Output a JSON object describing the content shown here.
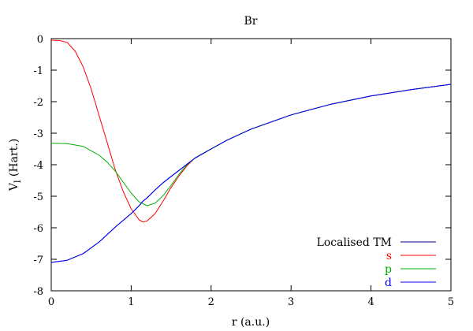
{
  "chart_data": {
    "type": "line",
    "title": "Br",
    "xlabel": "r (a.u.)",
    "ylabel_main": "V",
    "ylabel_sub": "l",
    "ylabel_unit": " (Hart.)",
    "xlim": [
      0,
      5
    ],
    "ylim": [
      -8,
      0
    ],
    "xticks": [
      0,
      1,
      2,
      3,
      4,
      5
    ],
    "yticks": [
      0,
      -1,
      -2,
      -3,
      -4,
      -5,
      -6,
      -7,
      -8
    ],
    "grid": false,
    "legend_position": "bottom-right",
    "series": [
      {
        "name": "Localised TM",
        "color": "#000080",
        "x": [
          0,
          0.2,
          0.4,
          0.6,
          0.8,
          1.0,
          1.1,
          1.15,
          1.2,
          1.3,
          1.4,
          1.5,
          1.6,
          1.7,
          1.8,
          2.0,
          2.2,
          2.5,
          3.0,
          3.5,
          4.0,
          4.5,
          5.0
        ],
        "y": [
          -7.1,
          -7.03,
          -6.82,
          -6.45,
          -5.98,
          -5.55,
          -5.3,
          -5.15,
          -5.05,
          -4.8,
          -4.57,
          -4.37,
          -4.18,
          -3.98,
          -3.79,
          -3.5,
          -3.22,
          -2.87,
          -2.42,
          -2.08,
          -1.82,
          -1.62,
          -1.45
        ]
      },
      {
        "name": "s",
        "color": "#ff0000",
        "x": [
          0,
          0.1,
          0.2,
          0.3,
          0.4,
          0.5,
          0.6,
          0.7,
          0.8,
          0.9,
          1.0,
          1.1,
          1.15,
          1.2,
          1.3,
          1.4,
          1.5,
          1.6,
          1.7,
          1.8,
          2.0,
          2.2,
          2.5,
          3.0,
          3.5,
          4.0,
          4.5,
          5.0
        ],
        "y": [
          -0.05,
          -0.06,
          -0.12,
          -0.4,
          -0.9,
          -1.6,
          -2.45,
          -3.3,
          -4.15,
          -4.85,
          -5.4,
          -5.75,
          -5.82,
          -5.78,
          -5.55,
          -5.15,
          -4.72,
          -4.35,
          -4.03,
          -3.78,
          -3.5,
          -3.22,
          -2.87,
          -2.42,
          -2.08,
          -1.82,
          -1.62,
          -1.45
        ]
      },
      {
        "name": "p",
        "color": "#00b000",
        "x": [
          0,
          0.2,
          0.4,
          0.6,
          0.7,
          0.8,
          0.9,
          1.0,
          1.1,
          1.2,
          1.3,
          1.4,
          1.5,
          1.6,
          1.7,
          1.8,
          2.0,
          2.2,
          2.5,
          3.0,
          3.5,
          4.0,
          4.5,
          5.0
        ],
        "y": [
          -3.32,
          -3.33,
          -3.42,
          -3.7,
          -3.92,
          -4.2,
          -4.55,
          -4.9,
          -5.18,
          -5.3,
          -5.22,
          -4.98,
          -4.65,
          -4.3,
          -4.0,
          -3.78,
          -3.5,
          -3.22,
          -2.87,
          -2.42,
          -2.08,
          -1.82,
          -1.62,
          -1.45
        ]
      },
      {
        "name": "d",
        "color": "#0000ff",
        "x": [
          0,
          0.2,
          0.4,
          0.6,
          0.8,
          1.0,
          1.1,
          1.15,
          1.2,
          1.3,
          1.4,
          1.5,
          1.6,
          1.7,
          1.8,
          2.0,
          2.2,
          2.5,
          3.0,
          3.5,
          4.0,
          4.5,
          5.0
        ],
        "y": [
          -7.1,
          -7.03,
          -6.82,
          -6.45,
          -5.98,
          -5.55,
          -5.3,
          -5.15,
          -5.05,
          -4.8,
          -4.57,
          -4.37,
          -4.18,
          -3.98,
          -3.79,
          -3.5,
          -3.22,
          -2.87,
          -2.42,
          -2.08,
          -1.82,
          -1.62,
          -1.45
        ]
      }
    ]
  }
}
